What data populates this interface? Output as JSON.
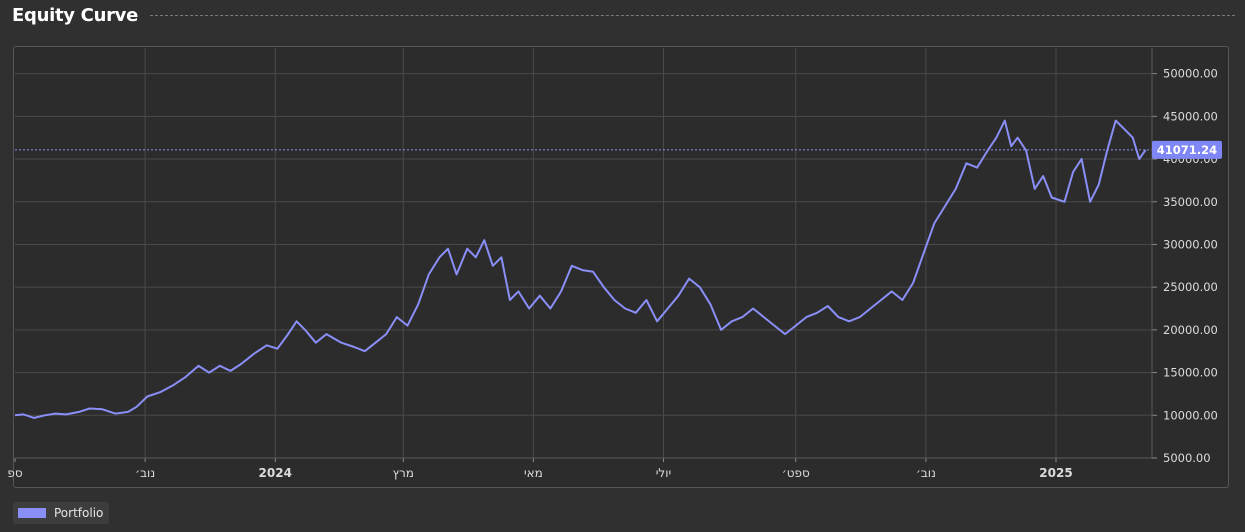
{
  "header": {
    "title": "Equity Curve"
  },
  "colors": {
    "line": "#8a8ff8",
    "grid": "#4a4a4a",
    "axis_text": "#dcdcdc",
    "price_tag_bg": "#7f86f5",
    "price_tag_text": "#ffffff"
  },
  "chart_data": {
    "type": "line",
    "title": "",
    "xlabel": "",
    "ylabel": "",
    "ylim": [
      5000,
      53000
    ],
    "y_ticks": [
      "5000.00",
      "10000.00",
      "15000.00",
      "20000.00",
      "25000.00",
      "30000.00",
      "35000.00",
      "40000.00",
      "45000.00",
      "50000.00"
    ],
    "x_ticks": [
      {
        "label": "ספ",
        "date": "2023-09-01"
      },
      {
        "label": "נוב׳",
        "date": "2023-11-01"
      },
      {
        "label": "2024",
        "date": "2024-01-01",
        "bold": true
      },
      {
        "label": "מרץ",
        "date": "2024-03-01"
      },
      {
        "label": "מאי",
        "date": "2024-05-01"
      },
      {
        "label": "יולי",
        "date": "2024-07-01"
      },
      {
        "label": "ספט׳",
        "date": "2024-09-01"
      },
      {
        "label": "נוב׳",
        "date": "2024-11-01"
      },
      {
        "label": "2025",
        "date": "2025-01-01",
        "bold": true
      }
    ],
    "last_value": "41071.24",
    "grid": true,
    "legend": "bottom-left",
    "series": [
      {
        "name": "Portfolio",
        "points": [
          [
            "2023-09-01",
            10000
          ],
          [
            "2023-09-05",
            10100
          ],
          [
            "2023-09-10",
            9700
          ],
          [
            "2023-09-15",
            10000
          ],
          [
            "2023-09-20",
            10200
          ],
          [
            "2023-09-25",
            10100
          ],
          [
            "2023-10-01",
            10400
          ],
          [
            "2023-10-06",
            10800
          ],
          [
            "2023-10-12",
            10700
          ],
          [
            "2023-10-18",
            10200
          ],
          [
            "2023-10-24",
            10400
          ],
          [
            "2023-10-28",
            11000
          ],
          [
            "2023-11-02",
            12200
          ],
          [
            "2023-11-08",
            12700
          ],
          [
            "2023-11-14",
            13500
          ],
          [
            "2023-11-20",
            14500
          ],
          [
            "2023-11-26",
            15800
          ],
          [
            "2023-12-01",
            15000
          ],
          [
            "2023-12-06",
            15800
          ],
          [
            "2023-12-11",
            15200
          ],
          [
            "2023-12-16",
            16000
          ],
          [
            "2023-12-22",
            17200
          ],
          [
            "2023-12-28",
            18200
          ],
          [
            "2024-01-02",
            17800
          ],
          [
            "2024-01-07",
            19500
          ],
          [
            "2024-01-11",
            21000
          ],
          [
            "2024-01-15",
            20000
          ],
          [
            "2024-01-20",
            18500
          ],
          [
            "2024-01-25",
            19500
          ],
          [
            "2024-02-01",
            18500
          ],
          [
            "2024-02-07",
            18000
          ],
          [
            "2024-02-12",
            17500
          ],
          [
            "2024-02-17",
            18500
          ],
          [
            "2024-02-22",
            19500
          ],
          [
            "2024-02-27",
            21500
          ],
          [
            "2024-03-03",
            20500
          ],
          [
            "2024-03-08",
            23000
          ],
          [
            "2024-03-13",
            26500
          ],
          [
            "2024-03-18",
            28500
          ],
          [
            "2024-03-22",
            29500
          ],
          [
            "2024-03-26",
            26500
          ],
          [
            "2024-03-31",
            29500
          ],
          [
            "2024-04-04",
            28500
          ],
          [
            "2024-04-08",
            30500
          ],
          [
            "2024-04-12",
            27500
          ],
          [
            "2024-04-16",
            28500
          ],
          [
            "2024-04-20",
            23500
          ],
          [
            "2024-04-24",
            24500
          ],
          [
            "2024-04-29",
            22500
          ],
          [
            "2024-05-04",
            24000
          ],
          [
            "2024-05-09",
            22500
          ],
          [
            "2024-05-14",
            24500
          ],
          [
            "2024-05-19",
            27500
          ],
          [
            "2024-05-24",
            27000
          ],
          [
            "2024-05-29",
            26800
          ],
          [
            "2024-06-03",
            25000
          ],
          [
            "2024-06-08",
            23500
          ],
          [
            "2024-06-13",
            22500
          ],
          [
            "2024-06-18",
            22000
          ],
          [
            "2024-06-23",
            23500
          ],
          [
            "2024-06-28",
            21000
          ],
          [
            "2024-07-03",
            22500
          ],
          [
            "2024-07-08",
            24000
          ],
          [
            "2024-07-13",
            26000
          ],
          [
            "2024-07-18",
            25000
          ],
          [
            "2024-07-23",
            23000
          ],
          [
            "2024-07-28",
            20000
          ],
          [
            "2024-08-02",
            21000
          ],
          [
            "2024-08-07",
            21500
          ],
          [
            "2024-08-12",
            22500
          ],
          [
            "2024-08-17",
            21500
          ],
          [
            "2024-08-22",
            20500
          ],
          [
            "2024-08-27",
            19500
          ],
          [
            "2024-09-01",
            20500
          ],
          [
            "2024-09-06",
            21500
          ],
          [
            "2024-09-11",
            22000
          ],
          [
            "2024-09-16",
            22800
          ],
          [
            "2024-09-21",
            21500
          ],
          [
            "2024-09-26",
            21000
          ],
          [
            "2024-10-01",
            21500
          ],
          [
            "2024-10-06",
            22500
          ],
          [
            "2024-10-11",
            23500
          ],
          [
            "2024-10-16",
            24500
          ],
          [
            "2024-10-21",
            23500
          ],
          [
            "2024-10-26",
            25500
          ],
          [
            "2024-10-31",
            29000
          ],
          [
            "2024-11-05",
            32500
          ],
          [
            "2024-11-10",
            34500
          ],
          [
            "2024-11-15",
            36500
          ],
          [
            "2024-11-20",
            39500
          ],
          [
            "2024-11-25",
            39000
          ],
          [
            "2024-11-30",
            41000
          ],
          [
            "2024-12-04",
            42500
          ],
          [
            "2024-12-08",
            44500
          ],
          [
            "2024-12-11",
            41500
          ],
          [
            "2024-12-14",
            42500
          ],
          [
            "2024-12-18",
            41000
          ],
          [
            "2024-12-22",
            36500
          ],
          [
            "2024-12-26",
            38000
          ],
          [
            "2024-12-30",
            35500
          ],
          [
            "2025-01-05",
            35000
          ],
          [
            "2025-01-09",
            38500
          ],
          [
            "2025-01-13",
            40000
          ],
          [
            "2025-01-17",
            35000
          ],
          [
            "2025-01-21",
            37000
          ],
          [
            "2025-01-25",
            41000
          ],
          [
            "2025-01-29",
            44500
          ],
          [
            "2025-02-02",
            43500
          ],
          [
            "2025-02-06",
            42500
          ],
          [
            "2025-02-09",
            40000
          ],
          [
            "2025-02-12",
            41071.24
          ]
        ]
      }
    ]
  }
}
